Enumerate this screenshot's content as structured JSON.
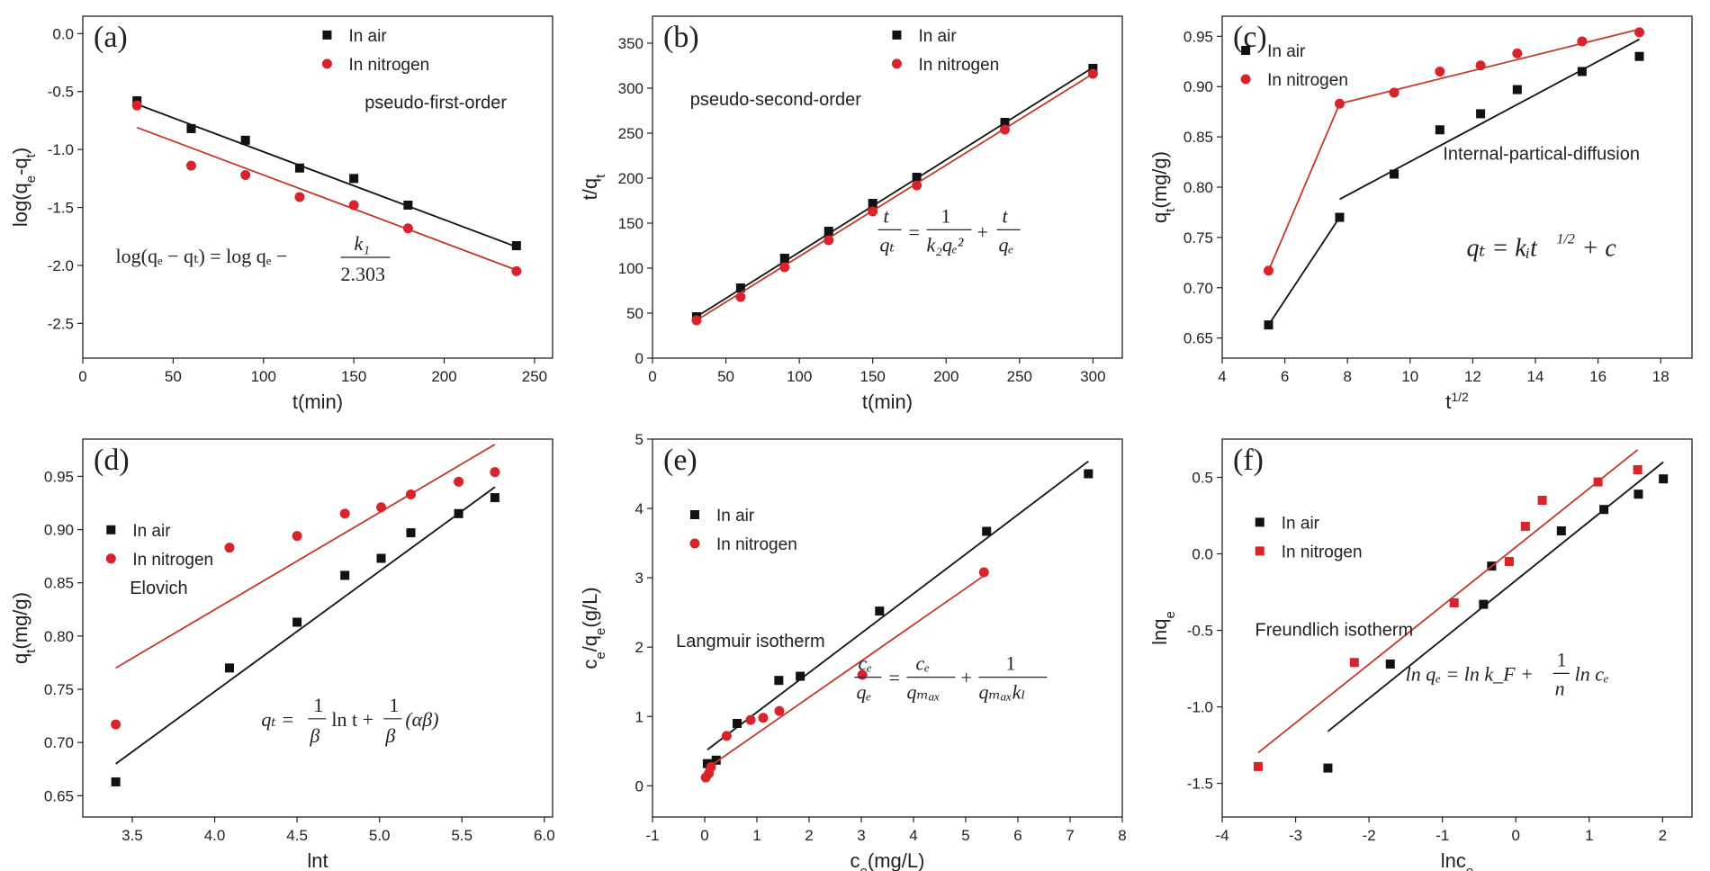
{
  "colors": {
    "air": "#111111",
    "nitrogen": "#d9232a",
    "fit_nitrogen": "#c0392b"
  },
  "chart_data": [
    {
      "panel": "(a)",
      "type": "scatter",
      "title": "",
      "xlabel": "t(min)",
      "ylabel": "log(q_e-q_t)",
      "xlim": [
        0,
        260
      ],
      "ylim": [
        -2.8,
        0.15
      ],
      "xticks": [
        0,
        50,
        100,
        150,
        200,
        250
      ],
      "xticklabels": [
        "0",
        "50",
        "100",
        "150",
        "200",
        "250"
      ],
      "yticks": [
        -2.5,
        -2.0,
        -1.5,
        -1.0,
        -0.5,
        0.0
      ],
      "yticklabels": [
        "-2.5",
        "-2.0",
        "-1.5",
        "-1.0",
        "-0.5",
        "0.0"
      ],
      "legend_position": "top-right",
      "series": [
        {
          "name": "In air",
          "marker": "square",
          "color": "#111111",
          "x": [
            30,
            60,
            90,
            120,
            150,
            180,
            240
          ],
          "y": [
            -0.58,
            -0.82,
            -0.92,
            -1.16,
            -1.25,
            -1.48,
            -1.83
          ],
          "fit": [
            [
              30,
              -0.61
            ],
            [
              240,
              -1.84
            ]
          ]
        },
        {
          "name": "In nitrogen",
          "marker": "circle",
          "color": "#d9232a",
          "x": [
            30,
            60,
            90,
            120,
            150,
            180,
            240
          ],
          "y": [
            -0.62,
            -1.14,
            -1.22,
            -1.41,
            -1.48,
            -1.68,
            -2.05
          ],
          "fit": [
            [
              30,
              -0.81
            ],
            [
              240,
              -2.04
            ]
          ]
        }
      ],
      "annotation": "pseudo-first-order",
      "equation": "log(qe − qt) = log qe − k1/2.303"
    },
    {
      "panel": "(b)",
      "type": "scatter",
      "title": "",
      "xlabel": "t(min)",
      "ylabel": "t/q_t",
      "xlim": [
        0,
        320
      ],
      "ylim": [
        0,
        380
      ],
      "xticks": [
        0,
        50,
        100,
        150,
        200,
        250,
        300
      ],
      "xticklabels": [
        "0",
        "50",
        "100",
        "150",
        "200",
        "250",
        "300"
      ],
      "yticks": [
        0,
        50,
        100,
        150,
        200,
        250,
        300,
        350
      ],
      "yticklabels": [
        "0",
        "50",
        "100",
        "150",
        "200",
        "250",
        "300",
        "350"
      ],
      "legend_position": "top-right",
      "series": [
        {
          "name": "In air",
          "marker": "square",
          "color": "#111111",
          "x": [
            30,
            60,
            90,
            120,
            150,
            180,
            240,
            300
          ],
          "y": [
            46,
            78,
            111,
            141,
            172,
            201,
            262,
            322
          ],
          "fit": [
            [
              30,
              46
            ],
            [
              300,
              323
            ]
          ]
        },
        {
          "name": "In nitrogen",
          "marker": "circle",
          "color": "#d9232a",
          "x": [
            30,
            60,
            90,
            120,
            150,
            180,
            240,
            300
          ],
          "y": [
            42,
            68,
            101,
            131,
            163,
            192,
            254,
            316
          ],
          "fit": [
            [
              30,
              42
            ],
            [
              300,
              316
            ]
          ]
        }
      ],
      "annotation": "pseudo-second-order",
      "equation": "t/qt = 1/(k2 qe²) + t/qe"
    },
    {
      "panel": "(c)",
      "type": "scatter",
      "title": "",
      "xlabel": "t^1/2",
      "ylabel": "q_t(mg/g)",
      "xlim": [
        4,
        19
      ],
      "ylim": [
        0.63,
        0.97
      ],
      "xticks": [
        4,
        6,
        8,
        10,
        12,
        14,
        16,
        18
      ],
      "xticklabels": [
        "4",
        "6",
        "8",
        "10",
        "12",
        "14",
        "16",
        "18"
      ],
      "yticks": [
        0.65,
        0.7,
        0.75,
        0.8,
        0.85,
        0.9,
        0.95
      ],
      "yticklabels": [
        "0.65",
        "0.70",
        "0.75",
        "0.80",
        "0.85",
        "0.90",
        "0.95"
      ],
      "legend_position": "top-left",
      "series": [
        {
          "name": "In air",
          "marker": "square",
          "color": "#111111",
          "x": [
            5.48,
            7.75,
            9.49,
            10.95,
            12.25,
            13.42,
            15.49,
            17.32
          ],
          "y": [
            0.663,
            0.77,
            0.813,
            0.857,
            0.873,
            0.897,
            0.915,
            0.93
          ],
          "fit": [
            [
              5.48,
              0.663
            ],
            [
              7.75,
              0.77
            ]
          ],
          "fit2": [
            [
              7.75,
              0.788
            ],
            [
              17.32,
              0.947
            ]
          ]
        },
        {
          "name": "In nitrogen",
          "marker": "circle",
          "color": "#d9232a",
          "x": [
            5.48,
            7.75,
            9.49,
            10.95,
            12.25,
            13.42,
            15.49,
            17.32
          ],
          "y": [
            0.717,
            0.883,
            0.894,
            0.915,
            0.921,
            0.933,
            0.945,
            0.954
          ],
          "fit": [
            [
              5.48,
              0.717
            ],
            [
              7.75,
              0.883
            ]
          ],
          "fit2": [
            [
              7.75,
              0.883
            ],
            [
              17.32,
              0.957
            ]
          ]
        }
      ],
      "annotation": "Internal-partical-diffusion",
      "equation": "qt = ki t^1/2 + c"
    },
    {
      "panel": "(d)",
      "type": "scatter",
      "title": "",
      "xlabel": "lnt",
      "ylabel": "q_t(mg/g)",
      "xlim": [
        3.2,
        6.05
      ],
      "ylim": [
        0.63,
        0.985
      ],
      "xticks": [
        3.5,
        4.0,
        4.5,
        5.0,
        5.5,
        6.0
      ],
      "xticklabels": [
        "3.5",
        "4.0",
        "4.5",
        "5.0",
        "5.5",
        "6.0"
      ],
      "yticks": [
        0.65,
        0.7,
        0.75,
        0.8,
        0.85,
        0.9,
        0.95
      ],
      "yticklabels": [
        "0.65",
        "0.70",
        "0.75",
        "0.80",
        "0.85",
        "0.90",
        "0.95"
      ],
      "legend_position": "top-left",
      "series": [
        {
          "name": "In air",
          "marker": "square",
          "color": "#111111",
          "x": [
            3.4,
            4.09,
            4.5,
            4.79,
            5.01,
            5.19,
            5.48,
            5.7
          ],
          "y": [
            0.663,
            0.77,
            0.813,
            0.857,
            0.873,
            0.897,
            0.915,
            0.93
          ],
          "fit": [
            [
              3.4,
              0.68
            ],
            [
              5.7,
              0.94
            ]
          ]
        },
        {
          "name": "In nitrogen",
          "marker": "circle",
          "color": "#d9232a",
          "x": [
            3.4,
            4.09,
            4.5,
            4.79,
            5.01,
            5.19,
            5.48,
            5.7
          ],
          "y": [
            0.717,
            0.883,
            0.894,
            0.915,
            0.921,
            0.933,
            0.945,
            0.954
          ],
          "fit": [
            [
              3.4,
              0.77
            ],
            [
              5.7,
              0.98
            ]
          ]
        }
      ],
      "annotation": "Elovich",
      "equation": "qt = (1/β) ln t + (1/β)(αβ)"
    },
    {
      "panel": "(e)",
      "type": "scatter",
      "title": "",
      "xlabel": "c_e(mg/L)",
      "ylabel": "c_e/q_e(g/L)",
      "xlim": [
        -1,
        8
      ],
      "ylim": [
        -0.45,
        5.0
      ],
      "xticks": [
        -1,
        0,
        1,
        2,
        3,
        4,
        5,
        6,
        7,
        8
      ],
      "xticklabels": [
        "-1",
        "0",
        "1",
        "2",
        "3",
        "4",
        "5",
        "6",
        "7",
        "8"
      ],
      "yticks": [
        0,
        1,
        2,
        3,
        4,
        5
      ],
      "yticklabels": [
        "0",
        "1",
        "2",
        "3",
        "4",
        "5"
      ],
      "legend_position": "top-left",
      "series": [
        {
          "name": "In air",
          "marker": "square",
          "color": "#111111",
          "x": [
            0.05,
            0.22,
            0.62,
            1.42,
            1.83,
            3.35,
            5.4,
            7.35
          ],
          "y": [
            0.32,
            0.37,
            0.9,
            1.52,
            1.58,
            2.52,
            3.67,
            4.5
          ],
          "fit": [
            [
              0.05,
              0.52
            ],
            [
              7.35,
              4.68
            ]
          ]
        },
        {
          "name": "In nitrogen",
          "marker": "circle",
          "color": "#d9232a",
          "x": [
            0.02,
            0.08,
            0.12,
            0.42,
            0.88,
            1.12,
            1.43,
            3.02,
            5.35
          ],
          "y": [
            0.12,
            0.18,
            0.27,
            0.72,
            0.95,
            0.98,
            1.08,
            1.6,
            3.08
          ],
          "fit": [
            [
              0.02,
              0.24
            ],
            [
              5.35,
              3.03
            ]
          ]
        }
      ],
      "annotation": "Langmuir  isotherm",
      "equation": "ce/qe = ce/qmax + 1/(qmax kL)"
    },
    {
      "panel": "(f)",
      "type": "scatter",
      "title": "",
      "xlabel": "lnc_e",
      "ylabel": "lnq_e",
      "xlim": [
        -4,
        2.4
      ],
      "ylim": [
        -1.72,
        0.75
      ],
      "xticks": [
        -4,
        -3,
        -2,
        -1,
        0,
        1,
        2
      ],
      "xticklabels": [
        "-4",
        "-3",
        "-2",
        "-1",
        "0",
        "1",
        "2"
      ],
      "yticks": [
        -1.5,
        -1.0,
        -0.5,
        0.0,
        0.5
      ],
      "yticklabels": [
        "-1.5",
        "-1.0",
        "-0.5",
        "0.0",
        "0.5"
      ],
      "legend_position": "top-left",
      "series": [
        {
          "name": "In air",
          "marker": "square",
          "color": "#111111",
          "x": [
            -2.56,
            -1.71,
            -0.44,
            -0.33,
            0.62,
            1.2,
            1.67,
            2.01
          ],
          "y": [
            -1.4,
            -0.72,
            -0.33,
            -0.08,
            0.15,
            0.29,
            0.39,
            0.49
          ],
          "fit": [
            [
              -2.56,
              -1.16
            ],
            [
              2.01,
              0.6
            ]
          ]
        },
        {
          "name": "In nitrogen",
          "marker": "square",
          "color": "#d9232a",
          "x": [
            -3.51,
            -2.2,
            -0.84,
            -0.09,
            0.13,
            0.36,
            1.12,
            1.66
          ],
          "y": [
            -1.39,
            -0.71,
            -0.32,
            -0.05,
            0.18,
            0.35,
            0.47,
            0.55
          ],
          "fit": [
            [
              -3.51,
              -1.3
            ],
            [
              1.66,
              0.68
            ]
          ]
        }
      ],
      "annotation": "Freundlich isotherm",
      "equation": "ln qe = ln kF + (1/n) ln ce"
    }
  ]
}
